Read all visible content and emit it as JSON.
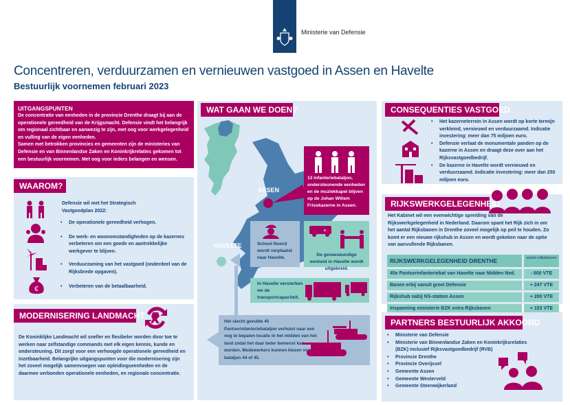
{
  "logo": {
    "org": "Ministerie van Defensie"
  },
  "header": {
    "title": "Concentreren, verduurzamen en vernieuwen vastgoed in Assen en Havelte",
    "subtitle": "Bestuurlijk voornemen februari 2023"
  },
  "uitgangspunten": {
    "title": "UITGANGSPUNTEN",
    "text": "De concentratie van eenheden in de provincie Drenthe draagt bij aan de operationele gereedheid van de Krijgsmacht. Defensie vindt het belangrijk om regionaal zichtbaar en aanwezig te zijn, met oog voor werkgelegenheid en vulling van de eigen eenheden.",
    "text2": "Samen met betrokken provincies en gemeenten zijn de ministeries van Defensie en van Binnenlandse Zaken en Koninkrijkrelaties gekomen tot een bestuurlijk voornemen. Met oog voor ieders belangen en wensen."
  },
  "waarom": {
    "title": "WAAROM?",
    "intro": "Defensie wil met het Strategisch Vastgoedplan 2022:",
    "items": [
      "De operationele gereedheid verhogen.",
      "De werk- en woonomstandigheden op de kazernes verbeteren om een goede en aantrekkelijke werkgever te blijven.",
      "Verduurzaming van het vastgoed (onderdeel van de Rijksbrede opgaven).",
      "Verbeteren van de betaalbaarheid."
    ]
  },
  "modernisering": {
    "title": "MODERNISERING LANDMACHT",
    "text": "De Koninklijke Landmacht wil sneller en flexibeler worden door toe te werken naar zelfstandige commands met elk eigen kennis, kunde en ondersteuning. Dit zorgt voor een verhoogde operationele gereedheid en inzetbaarheid. Belangrijke uitgangspunten voor die modernisering zijn het zoveel mogelijk samenvoegen van opleidingseenheden en de daarmee verbonden operationele eenheden, en regionale concentratie."
  },
  "watgaanwedoen": {
    "title": "WAT GAAN WE DOEN?",
    "assen_label": "ASSEN",
    "havelte_label": "HAVELTE",
    "assen_box": "13 Infanteriebataljon, ondersteunende eenheden en de muziekkapel blijven op de Johan Willem Frisokazerne in Assen.",
    "school": "School Noord wordt verplaatst naar Havelte.",
    "geneeskundig": "De geneeskundige eenheid in Havelte wordt uitgebreid.",
    "transport": "In Havelte versterken we de transportcapaciteit.",
    "tanks": "Het slecht gevulde 45 Pantserinfanteriebataljon verhuist naar een nog te bepalen locatie in het midden van het land zodat het daar beter bemenst kan worden. Medewerkers kunnen kiezen voor bataljon 44 of 45."
  },
  "consequenties": {
    "title": "CONSEQUENTIES VASTGOED",
    "items": [
      "Het kazerneterrein in Assen wordt op korte termijn verkleind, vernieuwd en verduurzaamd. Indicatie investering: meer dan 75 miljoen euro.",
      "Defensie verlaat de monumentale panden op de kazerne in Assen en draagt deze over aan het Rijksvastgoedbedrijf.",
      "De kazerne in Havelte wordt vernieuwd en verduurzaamd. Indicatie investering: meer dan 250 miljoen euro."
    ]
  },
  "rijkswerk": {
    "title": "RIJKSWERKGELEGENHEID",
    "text": "Het Kabinet wil een evenwichtige spreiding van de Rijkswerkgelegenheid in Nederland. Daarom spant het Rijk zich in om het aantal Rijksbanen in Drenthe zoveel mogelijk op peil te houden. Zo komt er een nieuwe rijkshub in Assen en wordt gekeken naar de optie van aanvullende Rijksbanen.",
    "table": {
      "header": "RIJKSWERKGELEGENHEID DRENTHE",
      "unit_header": "aantal voltijdsbanen",
      "rows": [
        {
          "label": "45e Pantserinfanteriebat van Havelte naar Midden Ned.",
          "value": "- 600 VTE"
        },
        {
          "label": "Banen erbij vanuit groei Defensie",
          "value": "+ 247 VTE"
        },
        {
          "label": "Rijkshub nabij NS-station Assen",
          "value": "+ 200 VTE"
        },
        {
          "label": "Inspanning ministerie BZK extra Rijksbanen",
          "value": "+ 153 VTE"
        }
      ]
    }
  },
  "partners": {
    "title": "PARTNERS BESTUURLIJK AKKOORD",
    "items": [
      "Ministerie van Defensie",
      "Ministerie van Binnenlandse Zaken en Koninkrijksrelaties (BZK) inclusief Rijksvastgoedbedrijf (RVB)",
      "Provincie Drenthe",
      "Provincie Overijssel",
      "Gemeente Assen",
      "Gemeente Westerveld",
      "Gemeente Steenwijkerland"
    ]
  },
  "colors": {
    "magenta": "#a90061",
    "dark_blue": "#154273",
    "light_blue": "#dde9f5",
    "teal": "#8fd0c5",
    "map_blue": "#4d7fae",
    "gray_blue": "#a7bfd6"
  }
}
